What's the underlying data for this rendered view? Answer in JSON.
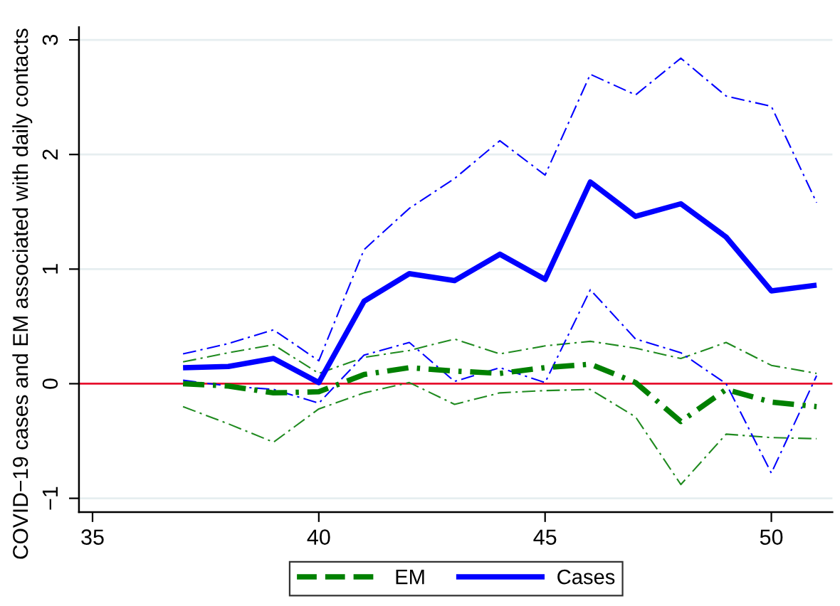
{
  "chart_data": {
    "type": "line",
    "ylabel": "COVID−19 cases and EM associated with daily contacts",
    "x": [
      37,
      38,
      39,
      40,
      41,
      42,
      43,
      44,
      45,
      46,
      47,
      48,
      49,
      50,
      51
    ],
    "series": [
      {
        "color": "#1f8a1f",
        "line_style": "dashed",
        "values": [
          0.19,
          0.27,
          0.34,
          0.09,
          0.23,
          0.29,
          0.39,
          0.26,
          0.33,
          0.37,
          0.31,
          0.22,
          0.36,
          0.16,
          0.09
        ]
      },
      {
        "color": "#1f8a1f",
        "line_style": "dashed",
        "values": [
          -0.2,
          -0.35,
          -0.51,
          -0.22,
          -0.08,
          0.01,
          -0.18,
          -0.08,
          -0.06,
          -0.05,
          -0.29,
          -0.88,
          -0.44,
          -0.47,
          -0.48
        ]
      },
      {
        "color": "#0000ff",
        "line_style": "dashed",
        "values": [
          0.26,
          0.35,
          0.47,
          0.2,
          1.17,
          1.53,
          1.79,
          2.12,
          1.82,
          2.7,
          2.52,
          2.84,
          2.51,
          2.42,
          1.58
        ]
      },
      {
        "color": "#0000ff",
        "line_style": "dashed",
        "values": [
          0.03,
          -0.02,
          -0.05,
          -0.17,
          0.25,
          0.36,
          0.02,
          0.14,
          0.01,
          0.82,
          0.39,
          0.27,
          0.0,
          -0.78,
          0.07
        ]
      },
      {
        "name": "EM",
        "color": "#008000",
        "line_style": "dashed",
        "values": [
          0.0,
          -0.02,
          -0.08,
          -0.07,
          0.08,
          0.14,
          0.11,
          0.09,
          0.14,
          0.17,
          0.01,
          -0.33,
          -0.05,
          -0.16,
          -0.2
        ]
      },
      {
        "name": "Cases",
        "color": "#0000ff",
        "line_style": "solid",
        "values": [
          0.14,
          0.15,
          0.22,
          0.01,
          0.72,
          0.96,
          0.9,
          1.13,
          0.91,
          1.76,
          1.46,
          1.57,
          1.28,
          0.81,
          0.86
        ]
      }
    ],
    "xlim": [
      34.7,
      51.35
    ],
    "ylim": [
      -1.12,
      3.11
    ],
    "xticks": [
      35,
      40,
      45,
      50
    ],
    "yticks": [
      {
        "value": -1,
        "label": "−1"
      },
      0,
      1,
      2,
      3
    ],
    "grid": "y",
    "legend": "bottom",
    "marker": "none",
    "ref_lines": [
      {
        "axis": "y",
        "value": 0,
        "color": "#e8102e"
      }
    ]
  }
}
